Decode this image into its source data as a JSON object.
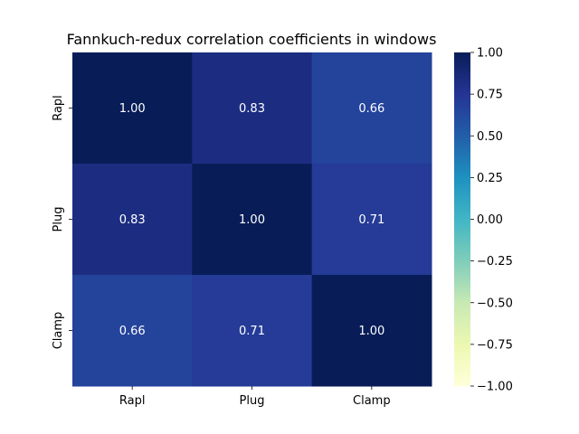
{
  "chart_data": {
    "type": "heatmap",
    "title": "Fannkuch-redux correlation coefficients in windows",
    "x_categories": [
      "Rapl",
      "Plug",
      "Clamp"
    ],
    "y_categories": [
      "Rapl",
      "Plug",
      "Clamp"
    ],
    "values": [
      [
        1.0,
        0.83,
        0.66
      ],
      [
        0.83,
        1.0,
        0.71
      ],
      [
        0.66,
        0.71,
        1.0
      ]
    ],
    "value_labels": [
      [
        "1.00",
        "0.83",
        "0.66"
      ],
      [
        "0.83",
        "1.00",
        "0.71"
      ],
      [
        "0.66",
        "0.71",
        "1.00"
      ]
    ],
    "colorbar": {
      "range": [
        -1.0,
        1.0
      ],
      "ticks": [
        1.0,
        0.75,
        0.5,
        0.25,
        0.0,
        -0.25,
        -0.5,
        -0.75,
        -1.0
      ],
      "tick_labels": [
        "1.00",
        "0.75",
        "0.50",
        "0.25",
        "0.00",
        "−0.25",
        "−0.50",
        "−0.75",
        "−1.00"
      ],
      "colormap": "YlGnBu",
      "colormap_stops": [
        "#ffffd9",
        "#edf8b1",
        "#c7e9b4",
        "#7fcdbb",
        "#41b6c4",
        "#1d91c0",
        "#225ea8",
        "#253494",
        "#081d58"
      ]
    },
    "grid": false,
    "xlabel": "",
    "ylabel": ""
  }
}
